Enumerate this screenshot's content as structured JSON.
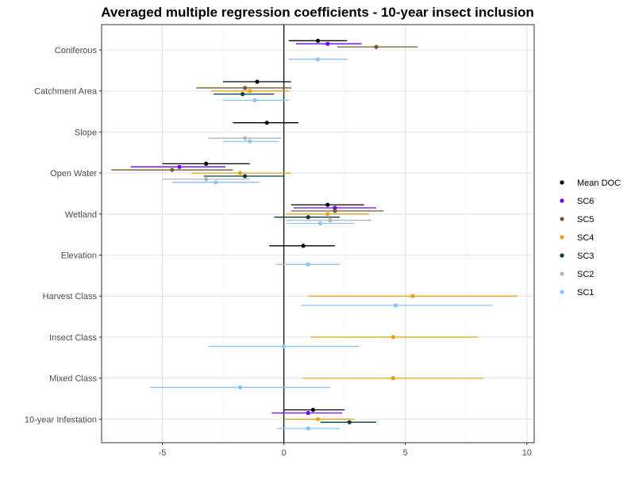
{
  "chart_data": {
    "type": "coefficient-dotplot",
    "title": "Averaged multiple regression coefficients - 10-year insect inclusion",
    "xlabel": "",
    "ylabel": "",
    "xlim": [
      -7.5,
      10.3
    ],
    "x_ticks": [
      -5,
      0,
      5,
      10
    ],
    "x_tick_labels": [
      "-5",
      "0",
      "5",
      "10"
    ],
    "reference_line_x": 0,
    "grid": true,
    "legend_position": "right",
    "categories": [
      "Coniferous",
      "Catchment Area",
      "Slope",
      "Open Water",
      "Wetland",
      "Elevation",
      "Harvest Class",
      "Insect Class",
      "Mixed Class",
      "10-year Infestation"
    ],
    "series": [
      {
        "name": "Mean DOC",
        "color": "#000000",
        "points": [
          {
            "category": "Coniferous",
            "estimate": 1.4,
            "lower": 0.2,
            "upper": 2.6
          },
          {
            "category": "Catchment Area",
            "estimate": -1.1,
            "lower": -2.5,
            "upper": 0.3
          },
          {
            "category": "Slope",
            "estimate": -0.7,
            "lower": -2.1,
            "upper": 0.6
          },
          {
            "category": "Open Water",
            "estimate": -3.2,
            "lower": -5.0,
            "upper": -1.4
          },
          {
            "category": "Wetland",
            "estimate": 1.8,
            "lower": 0.3,
            "upper": 3.3
          },
          {
            "category": "Elevation",
            "estimate": 0.8,
            "lower": -0.6,
            "upper": 2.1
          },
          {
            "category": "10-year Infestation",
            "estimate": 1.2,
            "lower": 0.0,
            "upper": 2.5
          }
        ]
      },
      {
        "name": "SC6",
        "color": "#6a00ff",
        "points": [
          {
            "category": "Coniferous",
            "estimate": 1.8,
            "lower": 0.5,
            "upper": 3.2
          },
          {
            "category": "Open Water",
            "estimate": -4.3,
            "lower": -6.3,
            "upper": -2.4
          },
          {
            "category": "Wetland",
            "estimate": 2.1,
            "lower": 0.4,
            "upper": 3.8
          },
          {
            "category": "10-year Infestation",
            "estimate": 1.0,
            "lower": -0.5,
            "upper": 2.4
          }
        ]
      },
      {
        "name": "SC5",
        "color": "#7a5a2a",
        "points": [
          {
            "category": "Coniferous",
            "estimate": 3.8,
            "lower": 2.2,
            "upper": 5.5
          },
          {
            "category": "Catchment Area",
            "estimate": -1.6,
            "lower": -3.6,
            "upper": 0.3
          },
          {
            "category": "Open Water",
            "estimate": -4.6,
            "lower": -7.1,
            "upper": -2.1
          },
          {
            "category": "Wetland",
            "estimate": 2.1,
            "lower": 0.3,
            "upper": 4.1
          }
        ]
      },
      {
        "name": "SC4",
        "color": "#e6a118",
        "points": [
          {
            "category": "Catchment Area",
            "estimate": -1.4,
            "lower": -3.0,
            "upper": 0.2
          },
          {
            "category": "Open Water",
            "estimate": -1.8,
            "lower": -3.8,
            "upper": 0.3
          },
          {
            "category": "Wetland",
            "estimate": 1.8,
            "lower": 0.1,
            "upper": 3.5
          },
          {
            "category": "Harvest Class",
            "estimate": 5.3,
            "lower": 1.0,
            "upper": 9.6
          },
          {
            "category": "Insect Class",
            "estimate": 4.5,
            "lower": 1.1,
            "upper": 8.0
          },
          {
            "category": "Mixed Class",
            "estimate": 4.5,
            "lower": 0.8,
            "upper": 8.2
          },
          {
            "category": "10-year Infestation",
            "estimate": 1.4,
            "lower": 0.0,
            "upper": 2.9
          }
        ]
      },
      {
        "name": "SC3",
        "color": "#0a3d3a",
        "points": [
          {
            "category": "Catchment Area",
            "estimate": -1.7,
            "lower": -2.9,
            "upper": -0.4
          },
          {
            "category": "Open Water",
            "estimate": -1.6,
            "lower": -3.3,
            "upper": 0.0
          },
          {
            "category": "Wetland",
            "estimate": 1.0,
            "lower": -0.4,
            "upper": 2.3
          },
          {
            "category": "10-year Infestation",
            "estimate": 2.7,
            "lower": 1.5,
            "upper": 3.8
          }
        ]
      },
      {
        "name": "SC2",
        "color": "#b5b5b5",
        "points": [
          {
            "category": "Slope",
            "estimate": -1.6,
            "lower": -3.1,
            "upper": -0.1
          },
          {
            "category": "Open Water",
            "estimate": -3.2,
            "lower": -5.0,
            "upper": -1.4
          },
          {
            "category": "Wetland",
            "estimate": 1.9,
            "lower": 0.1,
            "upper": 3.6
          }
        ]
      },
      {
        "name": "SC1",
        "color": "#8ec3f5",
        "points": [
          {
            "category": "Coniferous",
            "estimate": 1.4,
            "lower": 0.2,
            "upper": 2.6
          },
          {
            "category": "Catchment Area",
            "estimate": -1.2,
            "lower": -2.5,
            "upper": 0.2
          },
          {
            "category": "Slope",
            "estimate": -1.4,
            "lower": -2.5,
            "upper": -0.2
          },
          {
            "category": "Open Water",
            "estimate": -2.8,
            "lower": -4.6,
            "upper": -1.0
          },
          {
            "category": "Wetland",
            "estimate": 1.5,
            "lower": 0.1,
            "upper": 2.9
          },
          {
            "category": "Elevation",
            "estimate": 1.0,
            "lower": -0.3,
            "upper": 2.3
          },
          {
            "category": "Harvest Class",
            "estimate": 4.6,
            "lower": 0.7,
            "upper": 8.6
          },
          {
            "category": "Insect Class",
            "estimate": 0.0,
            "lower": -3.1,
            "upper": 3.1
          },
          {
            "category": "Mixed Class",
            "estimate": -1.8,
            "lower": -5.5,
            "upper": 1.9
          },
          {
            "category": "10-year Infestation",
            "estimate": 1.0,
            "lower": -0.3,
            "upper": 2.3
          }
        ]
      }
    ]
  }
}
